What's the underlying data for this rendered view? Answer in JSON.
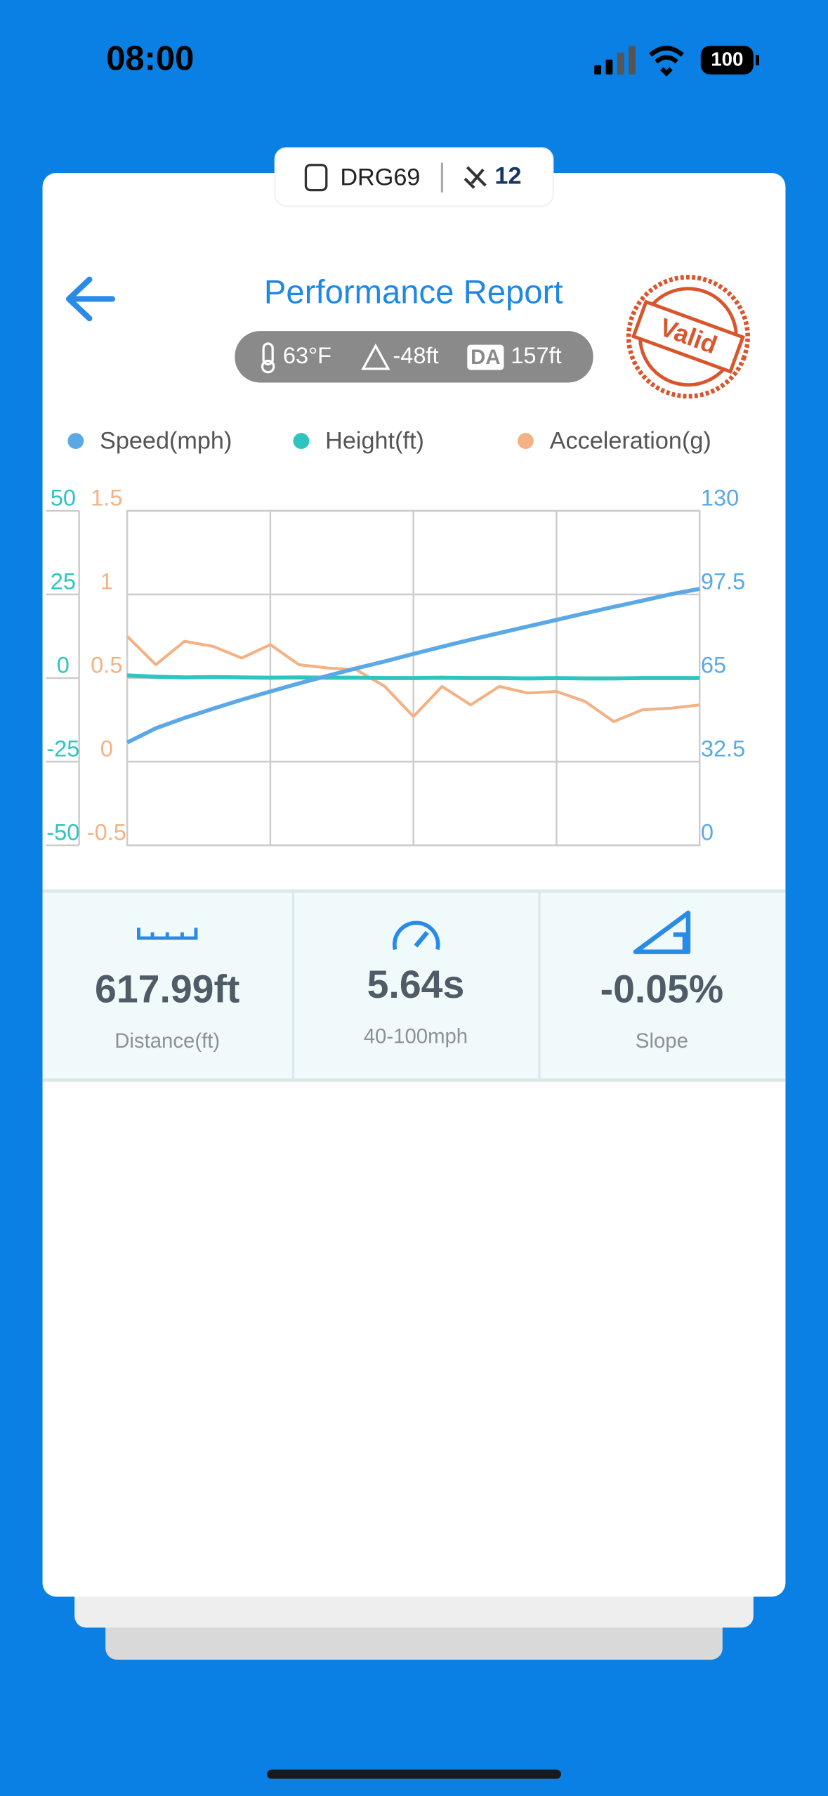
{
  "status_bar": {
    "time": "08:00",
    "battery": "100"
  },
  "device": {
    "name": "DRG69",
    "satellites": "12"
  },
  "header": {
    "title": "Performance Report",
    "temperature": "63°F",
    "altitude": "-48ft",
    "da_badge": "DA",
    "density_altitude": "157ft",
    "stamp": "Valid"
  },
  "chart_data": {
    "type": "line",
    "series": [
      {
        "name": "Speed(mph)",
        "color": "#5aa9e6",
        "axis": "y2",
        "values": [
          40,
          45.5,
          49.5,
          53.1,
          56.6,
          59.8,
          62.9,
          65.9,
          68.8,
          71.5,
          74.4,
          77.2,
          79.9,
          82.5,
          85.1,
          87.6,
          90.2,
          92.7,
          95.1,
          97.6,
          99.7
        ]
      },
      {
        "name": "Height(ft)",
        "color": "#2ec4c0",
        "axis": "y",
        "values": [
          0.8,
          0.4,
          0.2,
          0.3,
          0.2,
          0.1,
          0.2,
          0.1,
          0.1,
          0,
          0,
          0.1,
          0,
          0,
          -0.1,
          0,
          -0.1,
          -0.1,
          0,
          0,
          0
        ]
      },
      {
        "name": "Acceleration(g)",
        "color": "#f4b183",
        "axis": "y3",
        "values": [
          0.75,
          0.58,
          0.72,
          0.69,
          0.62,
          0.7,
          0.58,
          0.56,
          0.55,
          0.45,
          0.27,
          0.45,
          0.34,
          0.45,
          0.41,
          0.42,
          0.36,
          0.24,
          0.31,
          0.32,
          0.34
        ]
      }
    ],
    "ylim": [
      -50,
      50
    ],
    "yticks": [
      -50,
      -25,
      0,
      25,
      50
    ],
    "y3lim": [
      -0.5,
      1.5
    ],
    "y3ticks": [
      -0.5,
      0,
      0.5,
      1,
      1.5
    ],
    "y2lim": [
      0,
      130
    ],
    "y2ticks": [
      0,
      32.5,
      65,
      97.5,
      130
    ],
    "grid": true
  },
  "stats": [
    {
      "value": "617.99ft",
      "label": "Distance(ft)"
    },
    {
      "value": "5.64s",
      "label": "40-100mph"
    },
    {
      "value": "-0.05%",
      "label": "Slope"
    }
  ]
}
